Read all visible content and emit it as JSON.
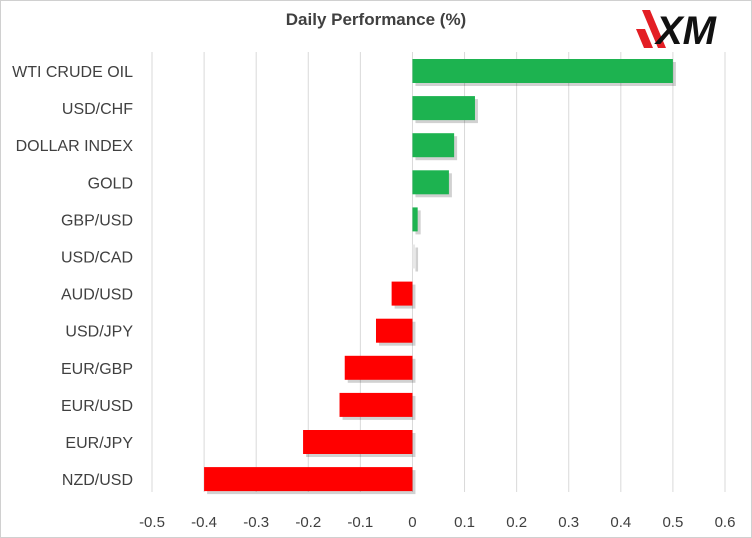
{
  "brand": {
    "logo_text": "XM",
    "colors": {
      "accent": "#e31e24",
      "dark": "#111111"
    }
  },
  "chart_data": {
    "type": "bar",
    "orientation": "horizontal",
    "title": "Daily Performance (%)",
    "xlabel": "",
    "ylabel": "",
    "categories": [
      "WTI CRUDE OIL",
      "USD/CHF",
      "DOLLAR INDEX",
      "GOLD",
      "GBP/USD",
      "USD/CAD",
      "AUD/USD",
      "USD/JPY",
      "EUR/GBP",
      "EUR/USD",
      "EUR/JPY",
      "NZD/USD"
    ],
    "values": [
      0.5,
      0.12,
      0.08,
      0.07,
      0.01,
      0.005,
      -0.04,
      -0.07,
      -0.13,
      -0.14,
      -0.21,
      -0.4
    ],
    "xlim": [
      -0.5,
      0.6
    ],
    "xticks": [
      -0.5,
      -0.4,
      -0.3,
      -0.2,
      -0.1,
      0,
      0.1,
      0.2,
      0.3,
      0.4,
      0.5,
      0.6
    ],
    "xtick_labels": [
      "-0.5",
      "-0.4",
      "-0.3",
      "-0.2",
      "-0.1",
      "0",
      "0.1",
      "0.2",
      "0.3",
      "0.4",
      "0.5",
      "0.6"
    ],
    "grid": "vertical",
    "colors": {
      "positive": "#1db350",
      "negative": "#ff0000",
      "neutral": "#e8e8e8",
      "grid": "#d9d9d9",
      "label": "#404040"
    }
  }
}
